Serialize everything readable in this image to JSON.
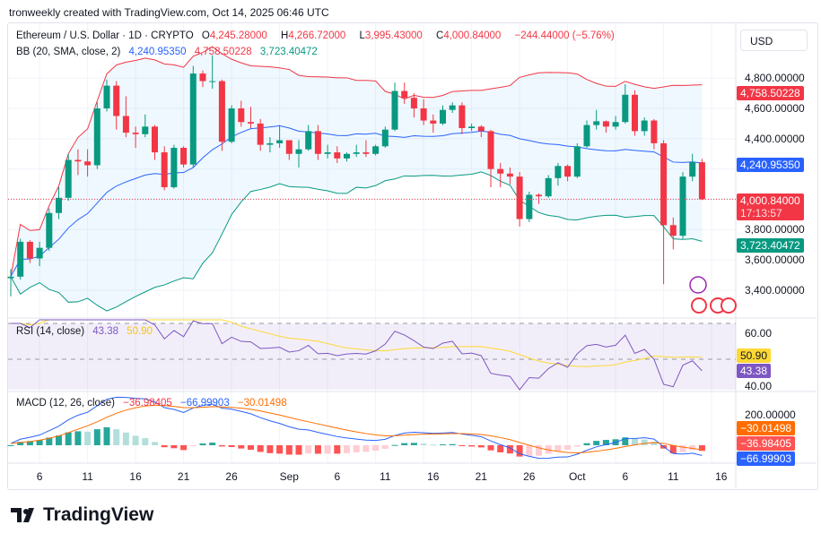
{
  "credit": "tronweekly created with TradingView.com, Oct 14, 2025 06:46 UTC",
  "currency_button": "USD",
  "logo_text": "TradingView",
  "legend": {
    "symbol": "Ethereum / U.S. Dollar · 1D · CRYPTO",
    "o_label": "O",
    "o": "4,245.28000",
    "h_label": "H",
    "h": "4,266.72000",
    "l_label": "L",
    "l": "3,995.43000",
    "c_label": "C",
    "c": "4,000.84000",
    "change": "−244.44000 (−5.76%)",
    "bb_label": "BB (20, SMA, close, 2)",
    "bb_basis": "4,240.95350",
    "bb_upper": "4,758.50228",
    "bb_lower": "3,723.40472",
    "rsi_label": "RSI (14, close)",
    "rsi": "43.38",
    "rsi_ma": "50.90",
    "macd_label": "MACD (12, 26, close)",
    "macd_hist": "−36.98405",
    "macd_line": "−66.99903",
    "macd_signal": "−30.01498"
  },
  "tags": {
    "bb_upper": "4,758.50228",
    "bb_basis": "4,240.95350",
    "price": "4,000.84000",
    "countdown": "17:13:57",
    "bb_lower": "3,723.40472",
    "rsi_ma": "50.90",
    "rsi": "43.38",
    "macd_signal": "−30.01498",
    "macd_hist": "−36.98405",
    "macd_line": "−66.99903"
  },
  "colors": {
    "up": "#089981",
    "down": "#f23645",
    "bb_basis": "#2962ff",
    "bb_upper": "#f23645",
    "bb_lower": "#089981",
    "rsi": "#7e57c2",
    "rsi_ma": "#fdd835",
    "macd": "#2962ff",
    "signal": "#ff6d00"
  },
  "chart_data": {
    "type": "candlestick",
    "title": "Ethereum / U.S. Dollar · 1D · CRYPTO",
    "start_date": "2025-08-03",
    "first_open": 3480,
    "close": [
      3490,
      3720,
      3610,
      3680,
      3910,
      4010,
      4260,
      4250,
      4225,
      4600,
      4750,
      4550,
      4440,
      4430,
      4480,
      4310,
      4080,
      4340,
      4230,
      4830,
      4780,
      4780,
      4380,
      4600,
      4510,
      4500,
      4360,
      4370,
      4390,
      4300,
      4330,
      4450,
      4300,
      4310,
      4270,
      4300,
      4310,
      4300,
      4350,
      4460,
      4715,
      4670,
      4600,
      4520,
      4500,
      4590,
      4620,
      4470,
      4480,
      4450,
      4200,
      4170,
      4150,
      3870,
      4030,
      4020,
      4140,
      4220,
      4150,
      4350,
      4490,
      4515,
      4480,
      4510,
      4690,
      4450,
      4520,
      4370,
      3830,
      3760,
      4150,
      4245,
      4000.84
    ],
    "high": [
      3540,
      3740,
      3730,
      3720,
      3940,
      4080,
      4300,
      4330,
      4330,
      4640,
      4790,
      4780,
      4680,
      4480,
      4560,
      4490,
      4350,
      4360,
      4350,
      4880,
      4850,
      4950,
      4790,
      4620,
      4650,
      4610,
      4530,
      4410,
      4490,
      4390,
      4390,
      4490,
      4490,
      4360,
      4350,
      4310,
      4360,
      4390,
      4360,
      4480,
      4770,
      4770,
      4700,
      4660,
      4560,
      4620,
      4640,
      4640,
      4500,
      4490,
      4460,
      4240,
      4210,
      4180,
      4050,
      4040,
      4160,
      4240,
      4230,
      4370,
      4520,
      4590,
      4520,
      4550,
      4760,
      4720,
      4540,
      4530,
      4390,
      3880,
      4180,
      4300,
      4266.72
    ],
    "low": [
      3360,
      3470,
      3580,
      3560,
      3660,
      3870,
      3990,
      4160,
      4150,
      4200,
      4580,
      4460,
      4410,
      4340,
      4410,
      4260,
      4060,
      4070,
      4210,
      4210,
      4740,
      4730,
      4320,
      4370,
      4480,
      4470,
      4320,
      4310,
      4340,
      4260,
      4210,
      4320,
      4260,
      4270,
      4240,
      4250,
      4280,
      4280,
      4290,
      4340,
      4450,
      4630,
      4540,
      4490,
      4440,
      4490,
      4570,
      4430,
      4450,
      4410,
      4080,
      4080,
      4100,
      3820,
      3850,
      3970,
      4010,
      4090,
      4120,
      4140,
      4340,
      4460,
      4440,
      4460,
      4500,
      4420,
      4420,
      4330,
      3440,
      3670,
      3740,
      4120,
      3995.43
    ],
    "x_ticks": [
      "6",
      "11",
      "16",
      "21",
      "26",
      "Sep",
      "6",
      "11",
      "16",
      "21",
      "26",
      "Oct",
      "6",
      "11",
      "16"
    ],
    "y_ticks": [
      "4,800.00000",
      "4,600.00000",
      "4,400.00000",
      "3,800.00000",
      "3,600.00000",
      "3,400.00000"
    ],
    "y_range": [
      3300,
      4920
    ],
    "indicators": {
      "bb": {
        "period": 20,
        "mult": 2,
        "last_basis": 4240.9535,
        "last_upper": 4758.50228,
        "last_lower": 3723.40472
      },
      "rsi": {
        "period": 14,
        "last": 43.38,
        "ma_last": 50.9,
        "ticks": [
          "60.00",
          "40.00"
        ]
      },
      "macd": {
        "fast": 12,
        "slow": 26,
        "last_macd": -66.99903,
        "last_signal": -30.01498,
        "last_hist": -36.98405,
        "ticks": [
          "200.00000"
        ]
      }
    }
  }
}
